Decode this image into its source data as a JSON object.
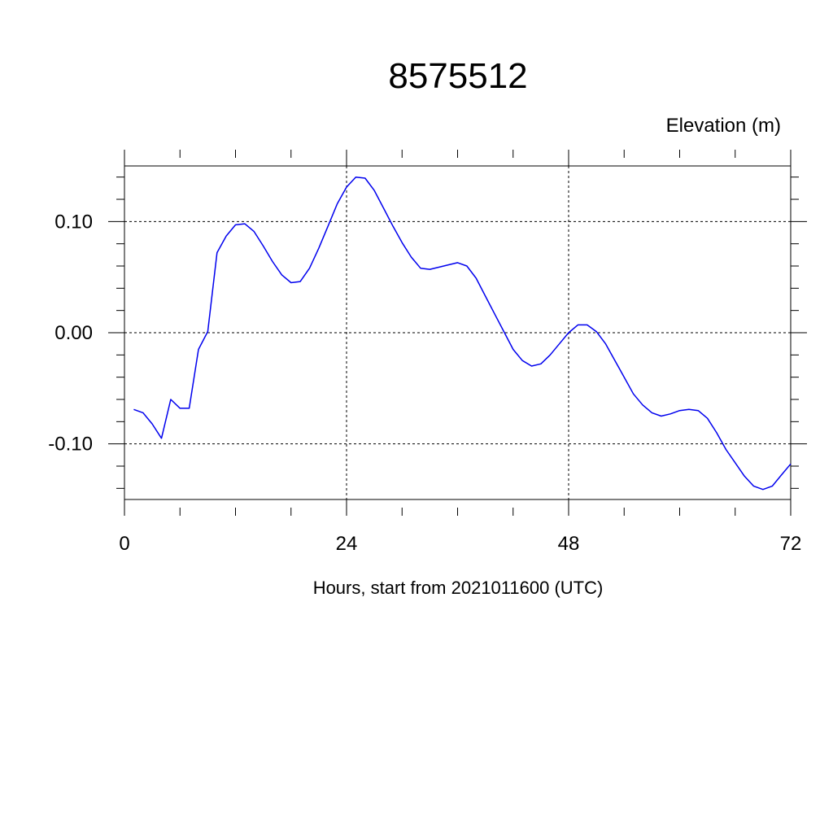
{
  "chart_data": {
    "type": "line",
    "title": "8575512",
    "ylabel": "Elevation (m)",
    "xlabel": "Hours, start from 2021011600 (UTC)",
    "xlim": [
      0,
      72
    ],
    "ylim": [
      -0.15,
      0.15
    ],
    "x_ticks": [
      0,
      24,
      48,
      72
    ],
    "x_tick_labels": [
      "0",
      "24",
      "48",
      "72"
    ],
    "x_minor_step": 6,
    "y_ticks": [
      -0.1,
      0.0,
      0.1
    ],
    "y_tick_labels": [
      "-0.10",
      "0.00",
      "0.10"
    ],
    "y_minor_step": 0.02,
    "grid": true,
    "series": [
      {
        "color": "#0000ee",
        "x": [
          1,
          2,
          3,
          4,
          5,
          6,
          7,
          8,
          9,
          10,
          11,
          12,
          13,
          14,
          15,
          16,
          17,
          18,
          19,
          20,
          21,
          22,
          23,
          24,
          25,
          26,
          27,
          28,
          29,
          30,
          31,
          32,
          33,
          34,
          35,
          36,
          37,
          38,
          39,
          40,
          41,
          42,
          43,
          44,
          45,
          46,
          47,
          48,
          49,
          50,
          51,
          52,
          53,
          54,
          55,
          56,
          57,
          58,
          59,
          60,
          61,
          62,
          63,
          64,
          65,
          66,
          67,
          68,
          69,
          70,
          71,
          72
        ],
        "values": [
          -0.069,
          -0.072,
          -0.082,
          -0.095,
          -0.06,
          -0.068,
          -0.068,
          -0.015,
          0.001,
          0.072,
          0.087,
          0.097,
          0.098,
          0.091,
          0.078,
          0.064,
          0.052,
          0.045,
          0.046,
          0.058,
          0.076,
          0.096,
          0.116,
          0.131,
          0.14,
          0.139,
          0.128,
          0.112,
          0.096,
          0.081,
          0.068,
          0.058,
          0.057,
          0.059,
          0.061,
          0.063,
          0.06,
          0.049,
          0.033,
          0.017,
          0.001,
          -0.015,
          -0.025,
          -0.03,
          -0.028,
          -0.02,
          -0.01,
          0.0,
          0.007,
          0.007,
          0.001,
          -0.01,
          -0.025,
          -0.04,
          -0.055,
          -0.065,
          -0.072,
          -0.075,
          -0.073,
          -0.07,
          -0.069,
          -0.07,
          -0.077,
          -0.09,
          -0.105,
          -0.117,
          -0.129,
          -0.138,
          -0.141,
          -0.138,
          -0.128,
          -0.118
        ]
      }
    ]
  }
}
